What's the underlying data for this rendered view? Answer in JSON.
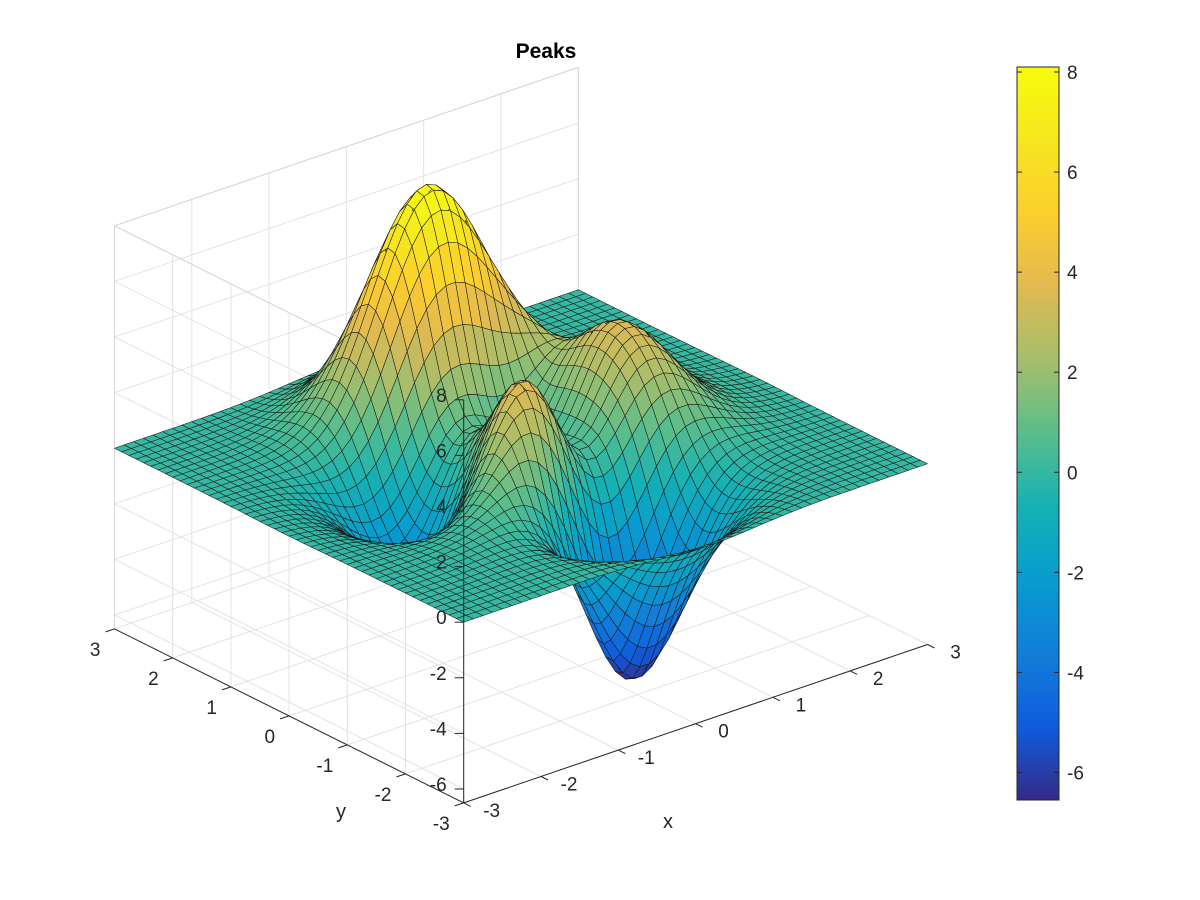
{
  "chart_data": {
    "type": "surface",
    "title": "Peaks",
    "function": "z = 3(1-x)^2 e^(-x^2-(y+1)^2) - 10(x/5 - x^3 - y^5) e^(-x^2-y^2) - 1/3 e^(-(x+1)^2-y^2)",
    "grid_points": 49,
    "xlabel": "x",
    "ylabel": "y",
    "zlabel": "",
    "xlim": [
      -3,
      3
    ],
    "ylim": [
      -3,
      3
    ],
    "zlim": [
      -6.5,
      8
    ],
    "x_ticks": [
      "-3",
      "-2",
      "-1",
      "0",
      "1",
      "2",
      "3"
    ],
    "y_ticks": [
      "-3",
      "-2",
      "-1",
      "0",
      "1",
      "2",
      "3"
    ],
    "z_ticks": [
      "-6",
      "-4",
      "-2",
      "0",
      "2",
      "4",
      "6",
      "8"
    ],
    "x_tick_values": [
      -3,
      -2,
      -1,
      0,
      1,
      2,
      3
    ],
    "y_tick_values": [
      -3,
      -2,
      -1,
      0,
      1,
      2,
      3
    ],
    "z_tick_values": [
      -6,
      -4,
      -2,
      0,
      2,
      4,
      6,
      8
    ],
    "colorbar": {
      "range": [
        -6.55,
        8.1
      ],
      "ticks": [
        "-6",
        "-4",
        "-2",
        "0",
        "2",
        "4",
        "6",
        "8"
      ],
      "tick_values": [
        -6,
        -4,
        -2,
        0,
        2,
        4,
        6,
        8
      ],
      "colormap": "parula"
    },
    "grid": true,
    "box": true,
    "view": "default 3-D (azimuth -37.5, elevation 30)"
  }
}
